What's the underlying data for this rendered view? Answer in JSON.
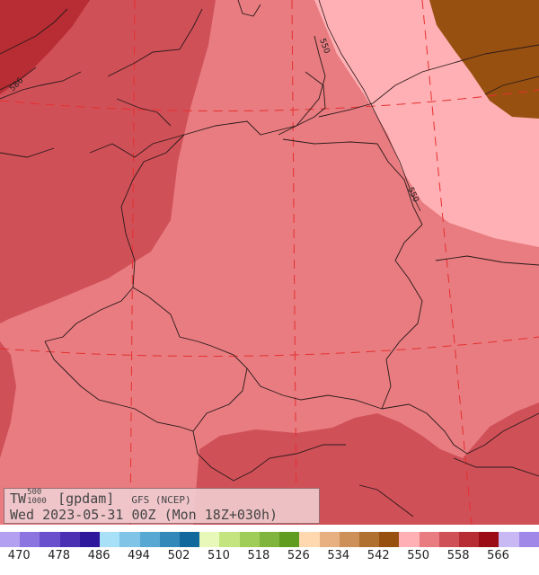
{
  "title": {
    "var": "TW",
    "sup": "500",
    "sub": "1000",
    "unit": "[gpdam]",
    "model": "GFS (NCEP)",
    "run": "Wed 2023-05-31 00Z (Mon 18Z+030h)"
  },
  "contour_labels": [
    "550",
    "550",
    "586"
  ],
  "legend": {
    "colors": [
      "#b3a0f0",
      "#8c74e0",
      "#6a50cc",
      "#4c30b4",
      "#30189c",
      "#a8e0f8",
      "#80c4e8",
      "#58a8d4",
      "#3288b8",
      "#10689c",
      "#e8f8b8",
      "#c4e480",
      "#a0cc58",
      "#80b43c",
      "#609c20",
      "#ffd8b0",
      "#e8b080",
      "#cc9058",
      "#b07030",
      "#985010",
      "#ffb0b4",
      "#e87c80",
      "#d05058",
      "#b82c34",
      "#9c0c14",
      "#c8b8f4",
      "#a088e8"
    ],
    "tick_labels": [
      "470",
      "478",
      "486",
      "494",
      "502",
      "510",
      "518",
      "526",
      "534",
      "542",
      "550",
      "558",
      "566"
    ]
  },
  "map": {
    "colors": {
      "lightest_pink": "#ffb0b4",
      "pink": "#e87c80",
      "red": "#d05058",
      "dark_red": "#b82c34",
      "brown": "#985010",
      "grid": "#e53030",
      "border": "#2a1a1a"
    }
  }
}
